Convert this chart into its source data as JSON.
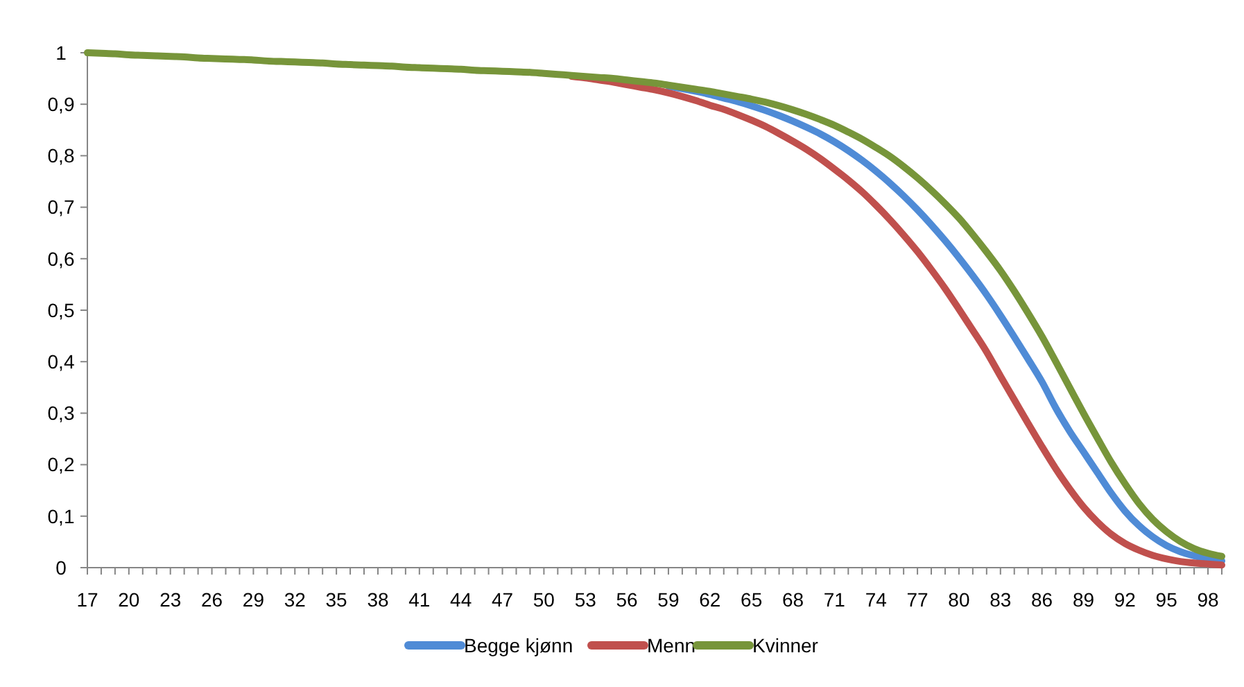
{
  "chart_data": {
    "type": "line",
    "categories": [
      "17",
      null,
      null,
      "20",
      null,
      null,
      "23",
      null,
      null,
      "26",
      null,
      null,
      "29",
      null,
      null,
      "32",
      null,
      null,
      "35",
      null,
      null,
      "38",
      null,
      null,
      "41",
      null,
      null,
      "44",
      null,
      null,
      "47",
      null,
      null,
      "50",
      null,
      null,
      "53",
      null,
      null,
      "56",
      null,
      null,
      "59",
      null,
      null,
      "62",
      null,
      null,
      "65",
      null,
      null,
      "68",
      null,
      null,
      "71",
      null,
      null,
      "74",
      null,
      null,
      "77",
      null,
      null,
      "80",
      null,
      null,
      "83",
      null,
      null,
      "86",
      null,
      null,
      "89",
      null,
      null,
      "92",
      null,
      null,
      "95",
      null,
      null,
      "98",
      null
    ],
    "series": [
      {
        "name": "Begge kjønn",
        "color": "#4f8bd6",
        "values": [
          null,
          null,
          null,
          null,
          null,
          null,
          null,
          null,
          null,
          null,
          null,
          null,
          null,
          null,
          null,
          null,
          null,
          null,
          null,
          null,
          null,
          null,
          null,
          null,
          null,
          null,
          null,
          null,
          null,
          null,
          null,
          null,
          null,
          null,
          null,
          null,
          null,
          null,
          null,
          null,
          null,
          null,
          0.935,
          0.93,
          0.925,
          0.919,
          0.912,
          0.905,
          0.897,
          0.888,
          0.878,
          0.867,
          0.855,
          0.842,
          0.827,
          0.81,
          0.791,
          0.77,
          0.747,
          0.722,
          0.695,
          0.666,
          0.635,
          0.602,
          0.567,
          0.53,
          0.49,
          0.448,
          0.405,
          0.361,
          0.31,
          0.265,
          0.225,
          0.185,
          0.145,
          0.11,
          0.082,
          0.06,
          0.043,
          0.031,
          0.023,
          0.017,
          0.013
        ]
      },
      {
        "name": "Menn",
        "color": "#c0504d",
        "values": [
          null,
          null,
          null,
          null,
          null,
          null,
          null,
          null,
          null,
          null,
          null,
          null,
          null,
          null,
          null,
          null,
          null,
          null,
          null,
          null,
          null,
          null,
          null,
          null,
          null,
          null,
          null,
          null,
          null,
          null,
          null,
          null,
          null,
          null,
          null,
          0.954,
          0.951,
          0.947,
          0.943,
          0.938,
          0.933,
          0.928,
          0.922,
          0.915,
          0.907,
          0.898,
          0.89,
          0.88,
          0.869,
          0.857,
          0.843,
          0.828,
          0.812,
          0.794,
          0.774,
          0.753,
          0.73,
          0.704,
          0.676,
          0.646,
          0.614,
          0.579,
          0.542,
          0.502,
          0.461,
          0.419,
          0.372,
          0.326,
          0.28,
          0.235,
          0.192,
          0.153,
          0.118,
          0.089,
          0.065,
          0.047,
          0.034,
          0.024,
          0.017,
          0.012,
          0.009,
          0.007,
          0.005
        ]
      },
      {
        "name": "Kvinner",
        "color": "#77953a",
        "values": [
          1.0,
          0.999,
          0.998,
          0.996,
          0.995,
          0.994,
          0.993,
          0.992,
          0.99,
          0.989,
          0.988,
          0.987,
          0.986,
          0.984,
          0.983,
          0.982,
          0.981,
          0.98,
          0.978,
          0.977,
          0.976,
          0.975,
          0.974,
          0.972,
          0.971,
          0.97,
          0.969,
          0.968,
          0.966,
          0.965,
          0.964,
          0.963,
          0.962,
          0.96,
          0.958,
          0.956,
          0.954,
          0.952,
          0.95,
          0.947,
          0.944,
          0.941,
          0.937,
          0.933,
          0.929,
          0.925,
          0.92,
          0.915,
          0.91,
          0.904,
          0.897,
          0.889,
          0.88,
          0.87,
          0.859,
          0.846,
          0.832,
          0.816,
          0.799,
          0.779,
          0.757,
          0.733,
          0.707,
          0.679,
          0.647,
          0.613,
          0.577,
          0.537,
          0.494,
          0.449,
          0.4,
          0.35,
          0.3,
          0.252,
          0.205,
          0.163,
          0.125,
          0.094,
          0.07,
          0.051,
          0.037,
          0.028,
          0.022
        ]
      }
    ],
    "ylim": [
      0,
      1
    ],
    "yticks": [
      0,
      {
        "value": 0.1,
        "label": "0,1"
      },
      {
        "value": 0.2,
        "label": "0,2"
      },
      {
        "value": 0.3,
        "label": "0,3"
      },
      {
        "value": 0.4,
        "label": "0,4"
      },
      {
        "value": 0.5,
        "label": "0,5"
      },
      {
        "value": 0.6,
        "label": "0,6"
      },
      {
        "value": 0.7,
        "label": "0,7"
      },
      {
        "value": 0.8,
        "label": "0,8"
      },
      {
        "value": 0.9,
        "label": "0,9"
      },
      1
    ],
    "grid": false,
    "legend": "bottom",
    "marker": "none",
    "line_style": "solid"
  }
}
